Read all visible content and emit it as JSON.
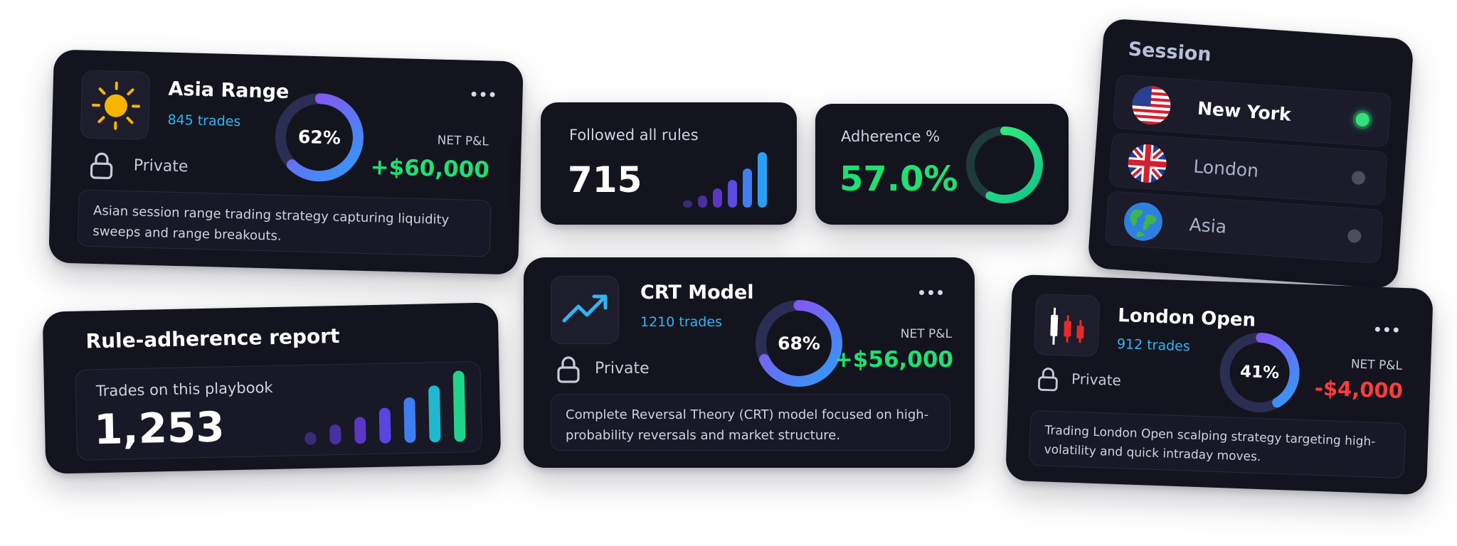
{
  "colors": {
    "card_bg": "#14141f",
    "positive": "#1fe073",
    "negative": "#ff3b3b",
    "accent": "#2fb6f2",
    "ring_from": "#2f9cf7",
    "ring_to": "#9b45f0"
  },
  "asia_range": {
    "title": "Asia Range",
    "trades": "845 trades",
    "icon": "sun-icon",
    "visibility": "Private",
    "win_pct_label": "62%",
    "win_pct": 0.62,
    "pnl_label": "NET P&L",
    "pnl_value": "+$60,000",
    "description": "Asian session range trading strategy capturing liquidity sweeps and range breakouts."
  },
  "followed_rules": {
    "label": "Followed all rules",
    "value": "715",
    "bar_levels": [
      0.13,
      0.22,
      0.35,
      0.5,
      0.7,
      1.0
    ]
  },
  "adherence": {
    "label": "Adherence %",
    "value": "57.0%",
    "percent": 0.57
  },
  "session": {
    "title": "Session",
    "options": [
      {
        "name": "New York",
        "icon": "us-flag-icon",
        "selected": true
      },
      {
        "name": "London",
        "icon": "uk-flag-icon",
        "selected": false
      },
      {
        "name": "Asia",
        "icon": "globe-icon",
        "selected": false
      }
    ]
  },
  "rule_report": {
    "title": "Rule-adherence report",
    "label": "Trades on this playbook",
    "value": "1,253",
    "bar_levels": [
      0.18,
      0.28,
      0.38,
      0.5,
      0.64,
      0.8,
      1.0
    ]
  },
  "crt_model": {
    "title": "CRT Model",
    "trades": "1210 trades",
    "icon": "trend-up-icon",
    "visibility": "Private",
    "win_pct_label": "68%",
    "win_pct": 0.68,
    "pnl_label": "NET P&L",
    "pnl_value": "+$56,000",
    "description": "Complete Reversal Theory (CRT) model focused on high-probability reversals and market structure."
  },
  "london_open": {
    "title": "London Open",
    "trades": "912 trades",
    "icon": "candlestick-icon",
    "visibility": "Private",
    "win_pct_label": "41%",
    "win_pct": 0.41,
    "pnl_label": "NET P&L",
    "pnl_value": "-$4,000",
    "description": "Trading London Open scalping strategy targeting high-volatility and quick intraday moves."
  }
}
